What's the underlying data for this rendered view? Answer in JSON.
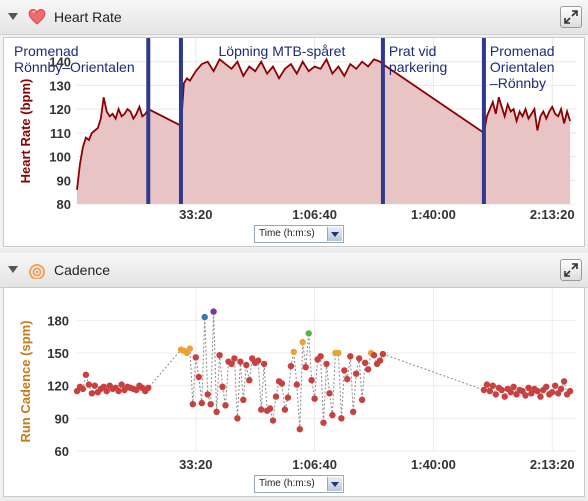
{
  "panels": {
    "heart_rate": {
      "title": "Heart Rate",
      "ylabel": "Heart Rate (bpm)",
      "time_select": "Time (h:m:s)"
    },
    "cadence": {
      "title": "Cadence",
      "ylabel": "Run Cadence (spm)",
      "time_select": "Time (h:m:s)"
    }
  },
  "colors": {
    "hr_line": "#8b0000",
    "hr_fill": "#e8c4c4",
    "segment_bar": "#2f3a8c",
    "cadence_point": "#c94040",
    "cadence_hi": "#f0a030",
    "cadence_green": "#5bb04a",
    "cadence_purple": "#7a3a8c",
    "cadence_blue": "#3a78b0",
    "hr_axis_label": "#8b0000",
    "cad_axis_label": "#c87a1a"
  },
  "icons": [
    "heart-icon",
    "cadence-icon",
    "expand-icon",
    "collapse-arrow-icon"
  ],
  "chart_data": [
    {
      "type": "area",
      "title": "Heart Rate",
      "xlabel": "Time (h:m:s)",
      "ylabel": "Heart Rate (bpm)",
      "ylim": [
        80,
        150
      ],
      "yticks": [
        80,
        90,
        100,
        110,
        120,
        130,
        140
      ],
      "xlim": [
        0,
        8400
      ],
      "xticks": [
        {
          "value": 2000,
          "label": "33:20"
        },
        {
          "value": 4000,
          "label": "1:06:40"
        },
        {
          "value": 6000,
          "label": "1:40:00"
        },
        {
          "value": 8000,
          "label": "2:13:20"
        }
      ],
      "segments": [
        {
          "label": [
            "Promenad",
            "Rönnby–Orientalen"
          ],
          "start": 0,
          "end": 1200
        },
        {
          "label": [
            "Löpning MTB-spåret"
          ],
          "start": 1750,
          "end": 5150
        },
        {
          "label": [
            "Prat vid",
            "parkering"
          ],
          "start": 5150,
          "end": 6850
        },
        {
          "label": [
            "Promenad",
            "Orientalen",
            "–Rönnby"
          ],
          "start": 6850,
          "end": 8400
        }
      ],
      "series": [
        {
          "x": [
            0,
            50,
            100,
            150,
            200,
            250,
            300,
            350,
            400,
            450,
            500,
            550,
            600,
            650,
            700,
            750,
            800,
            850,
            900,
            950,
            1000,
            1050,
            1100,
            1150,
            1200,
            1750,
            1800,
            1850,
            1900,
            2000,
            2100,
            2200,
            2300,
            2400,
            2500,
            2600,
            2700,
            2800,
            2900,
            3000,
            3100,
            3200,
            3300,
            3400,
            3500,
            3600,
            3700,
            3800,
            3900,
            4000,
            4100,
            4200,
            4300,
            4400,
            4500,
            4600,
            4700,
            4800,
            4900,
            5000,
            5100,
            5150,
            6850,
            6900,
            6950,
            7000,
            7050,
            7100,
            7150,
            7200,
            7250,
            7300,
            7350,
            7400,
            7450,
            7500,
            7550,
            7600,
            7650,
            7700,
            7750,
            7800,
            7850,
            7900,
            7950,
            8000,
            8050,
            8100,
            8150,
            8200,
            8250,
            8300
          ],
          "y": [
            86,
            97,
            104,
            108,
            107,
            110,
            111,
            112,
            116,
            125,
            119,
            117,
            118,
            116,
            120,
            117,
            118,
            120,
            119,
            116,
            118,
            121,
            117,
            118,
            120,
            113,
            131,
            133,
            132,
            136,
            139,
            140,
            136,
            141,
            139,
            137,
            140,
            134,
            138,
            136,
            140,
            135,
            138,
            133,
            137,
            139,
            135,
            140,
            136,
            138,
            137,
            141,
            135,
            138,
            134,
            139,
            137,
            140,
            138,
            141,
            140,
            139,
            110,
            117,
            120,
            123,
            118,
            125,
            121,
            117,
            122,
            119,
            120,
            115,
            119,
            117,
            120,
            116,
            118,
            120,
            111,
            117,
            119,
            116,
            119,
            121,
            118,
            117,
            120,
            114,
            119,
            115
          ]
        }
      ]
    },
    {
      "type": "scatter",
      "title": "Cadence",
      "xlabel": "Time (h:m:s)",
      "ylabel": "Run Cadence (spm)",
      "ylim": [
        60,
        195
      ],
      "yticks": [
        60,
        90,
        120,
        150,
        180
      ],
      "xlim": [
        0,
        8400
      ],
      "xticks": [
        {
          "value": 2000,
          "label": "33:20"
        },
        {
          "value": 4000,
          "label": "1:06:40"
        },
        {
          "value": 6000,
          "label": "1:40:00"
        },
        {
          "value": 8000,
          "label": "2:13:20"
        }
      ],
      "series": [
        {
          "x": [
            0,
            50,
            100,
            150,
            200,
            250,
            300,
            350,
            400,
            450,
            500,
            550,
            600,
            650,
            700,
            750,
            800,
            850,
            900,
            950,
            1000,
            1050,
            1100,
            1150,
            1200,
            1750,
            1800,
            1850,
            1900,
            1950,
            2000,
            2050,
            2100,
            2150,
            2200,
            2250,
            2300,
            2350,
            2400,
            2450,
            2500,
            2550,
            2600,
            2650,
            2700,
            2750,
            2800,
            2850,
            2900,
            2950,
            3000,
            3050,
            3100,
            3150,
            3200,
            3250,
            3300,
            3350,
            3400,
            3450,
            3500,
            3550,
            3600,
            3650,
            3700,
            3750,
            3800,
            3850,
            3900,
            3950,
            4000,
            4050,
            4100,
            4150,
            4200,
            4250,
            4300,
            4350,
            4400,
            4450,
            4500,
            4550,
            4600,
            4650,
            4700,
            4750,
            4800,
            4850,
            4900,
            4950,
            5000,
            5050,
            5100,
            5150,
            6850,
            6900,
            6950,
            7000,
            7050,
            7100,
            7150,
            7200,
            7250,
            7300,
            7350,
            7400,
            7450,
            7500,
            7550,
            7600,
            7650,
            7700,
            7750,
            7800,
            7850,
            7900,
            7950,
            8000,
            8050,
            8100,
            8150,
            8200,
            8250,
            8300
          ],
          "y": [
            115,
            119,
            117,
            130,
            121,
            113,
            120,
            114,
            117,
            119,
            115,
            120,
            117,
            118,
            115,
            121,
            116,
            119,
            118,
            117,
            116,
            120,
            118,
            115,
            118,
            153,
            152,
            150,
            154,
            103,
            146,
            128,
            104,
            183,
            112,
            103,
            188,
            96,
            148,
            119,
            102,
            142,
            140,
            145,
            90,
            142,
            107,
            139,
            125,
            145,
            141,
            143,
            98,
            140,
            97,
            99,
            88,
            110,
            124,
            122,
            98,
            109,
            138,
            151,
            121,
            80,
            160,
            137,
            168,
            125,
            108,
            144,
            147,
            86,
            140,
            113,
            93,
            150,
            150,
            90,
            134,
            126,
            147,
            96,
            131,
            145,
            107,
            141,
            135,
            150,
            148,
            140,
            143,
            149,
            116,
            121,
            115,
            120,
            112,
            118,
            116,
            110,
            117,
            114,
            119,
            112,
            116,
            115,
            111,
            118,
            113,
            117,
            115,
            110,
            116,
            119,
            112,
            114,
            120,
            113,
            117,
            124,
            112,
            115
          ]
        }
      ]
    }
  ]
}
